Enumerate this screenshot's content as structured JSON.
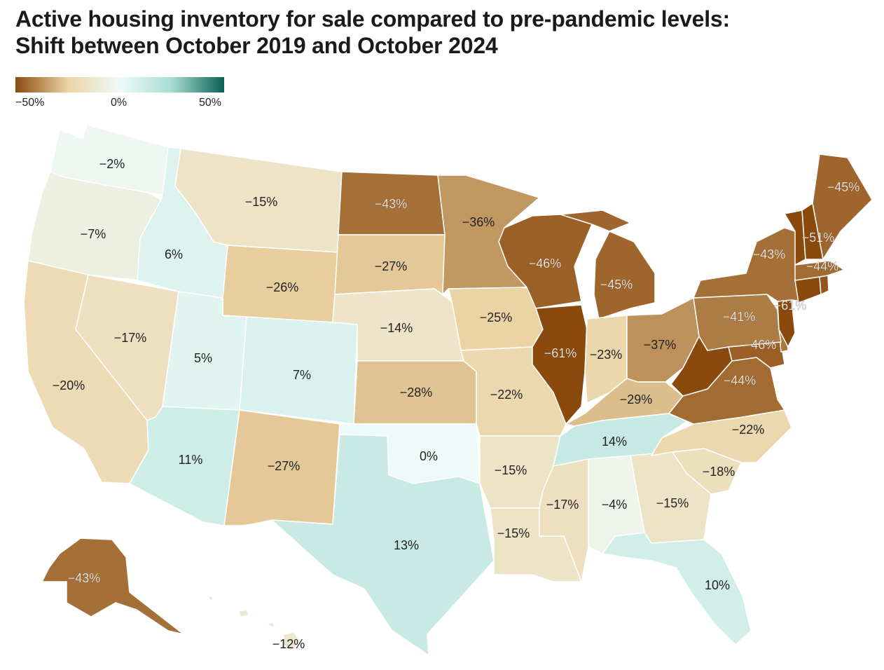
{
  "title": {
    "line1": "Active housing inventory for sale compared to pre-pandemic levels:",
    "line2": "Shift between October 2019 and October 2024"
  },
  "legend": {
    "ticks": [
      "−50%",
      "0%",
      "50%"
    ],
    "min_value": -50,
    "max_value": 50,
    "colors": {
      "low": "#8a4a0e",
      "mid_low": "#ecd3a4",
      "zero": "#eefaf8",
      "mid_high": "#a7dcd2",
      "high": "#0b5f55"
    }
  },
  "states": [
    {
      "name": "WA",
      "value": -2,
      "label": "−2%"
    },
    {
      "name": "OR",
      "value": -7,
      "label": "−7%"
    },
    {
      "name": "CA",
      "value": -20,
      "label": "−20%"
    },
    {
      "name": "NV",
      "value": -17,
      "label": "−17%"
    },
    {
      "name": "ID",
      "value": 6,
      "label": "6%"
    },
    {
      "name": "MT",
      "value": -15,
      "label": "−15%"
    },
    {
      "name": "WY",
      "value": -26,
      "label": "−26%"
    },
    {
      "name": "UT",
      "value": 5,
      "label": "5%"
    },
    {
      "name": "AZ",
      "value": 11,
      "label": "11%"
    },
    {
      "name": "CO",
      "value": 7,
      "label": "7%"
    },
    {
      "name": "NM",
      "value": -27,
      "label": "−27%"
    },
    {
      "name": "ND",
      "value": -43,
      "label": "−43%"
    },
    {
      "name": "SD",
      "value": -27,
      "label": "−27%"
    },
    {
      "name": "NE",
      "value": -14,
      "label": "−14%"
    },
    {
      "name": "KS",
      "value": -28,
      "label": "−28%"
    },
    {
      "name": "OK",
      "value": 0,
      "label": "0%"
    },
    {
      "name": "TX",
      "value": 13,
      "label": "13%"
    },
    {
      "name": "MN",
      "value": -36,
      "label": "−36%"
    },
    {
      "name": "IA",
      "value": -25,
      "label": "−25%"
    },
    {
      "name": "MO",
      "value": -22,
      "label": "−22%"
    },
    {
      "name": "AR",
      "value": -15,
      "label": "−15%"
    },
    {
      "name": "LA",
      "value": -15,
      "label": "−15%"
    },
    {
      "name": "WI",
      "value": -46,
      "label": "−46%"
    },
    {
      "name": "IL",
      "value": -61,
      "label": "−61%"
    },
    {
      "name": "MI",
      "value": -45,
      "label": "−45%"
    },
    {
      "name": "IN",
      "value": -23,
      "label": "−23%"
    },
    {
      "name": "OH",
      "value": -37,
      "label": "−37%"
    },
    {
      "name": "KY",
      "value": -29,
      "label": "−29%"
    },
    {
      "name": "TN",
      "value": 14,
      "label": "14%"
    },
    {
      "name": "MS",
      "value": -17,
      "label": "−17%"
    },
    {
      "name": "AL",
      "value": -4,
      "label": "−4%"
    },
    {
      "name": "GA",
      "value": -15,
      "label": "−15%"
    },
    {
      "name": "FL",
      "value": 10,
      "label": "10%"
    },
    {
      "name": "SC",
      "value": -18,
      "label": "−18%"
    },
    {
      "name": "NC",
      "value": -22,
      "label": "−22%"
    },
    {
      "name": "VA",
      "value": -44,
      "label": "−44%"
    },
    {
      "name": "WV",
      "value": -50,
      "label": ""
    },
    {
      "name": "MD",
      "value": -46,
      "label": "−46%"
    },
    {
      "name": "DE",
      "value": -42,
      "label": ""
    },
    {
      "name": "PA",
      "value": -41,
      "label": "−41%"
    },
    {
      "name": "NJ",
      "value": -56,
      "label": ""
    },
    {
      "name": "NY",
      "value": -43,
      "label": "−43%"
    },
    {
      "name": "CT",
      "value": -61,
      "label": "−61%"
    },
    {
      "name": "RI",
      "value": -48,
      "label": ""
    },
    {
      "name": "MA",
      "value": -44,
      "label": "−44%"
    },
    {
      "name": "VT",
      "value": -51,
      "label": "−51%"
    },
    {
      "name": "NH",
      "value": -50,
      "label": ""
    },
    {
      "name": "ME",
      "value": -45,
      "label": "−45%"
    },
    {
      "name": "AK",
      "value": -43,
      "label": "−43%"
    },
    {
      "name": "HI",
      "value": -12,
      "label": "−12%"
    }
  ]
}
